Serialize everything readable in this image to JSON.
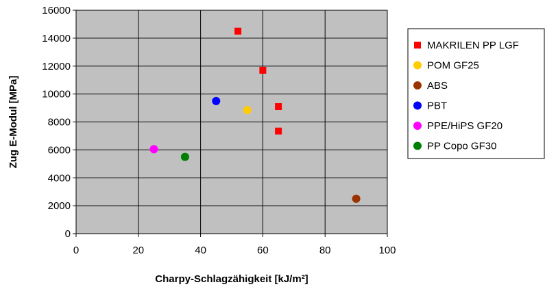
{
  "chart_data": {
    "type": "scatter",
    "title": "",
    "xlabel": "Charpy-Schlagzähigkeit [kJ/m²]",
    "ylabel": "Zug E-Modul [MPa]",
    "xlim": [
      0,
      100
    ],
    "ylim": [
      0,
      16000
    ],
    "x_ticks": [
      0,
      20,
      40,
      60,
      80,
      100
    ],
    "y_ticks": [
      0,
      2000,
      4000,
      6000,
      8000,
      10000,
      12000,
      14000,
      16000
    ],
    "grid": "vertical and horizontal major gridlines",
    "plot_background": "#c0c0c0",
    "legend_position": "right",
    "series": [
      {
        "name": "MAKRILEN PP LGF",
        "marker": "square",
        "color": "#ff0000",
        "points": [
          [
            52,
            14500
          ],
          [
            60,
            11700
          ],
          [
            65,
            9100
          ],
          [
            65,
            7350
          ]
        ]
      },
      {
        "name": "POM GF25",
        "marker": "circle",
        "color": "#ffcc00",
        "points": [
          [
            55,
            8850
          ]
        ]
      },
      {
        "name": "ABS",
        "marker": "circle",
        "color": "#993300",
        "points": [
          [
            90,
            2500
          ]
        ]
      },
      {
        "name": "PBT",
        "marker": "circle",
        "color": "#0000ff",
        "points": [
          [
            45,
            9500
          ]
        ]
      },
      {
        "name": "PPE/HiPS GF20",
        "marker": "circle",
        "color": "#ff00ff",
        "points": [
          [
            25,
            6050
          ]
        ]
      },
      {
        "name": "PP Copo GF30",
        "marker": "circle",
        "color": "#008000",
        "points": [
          [
            35,
            5500
          ]
        ]
      }
    ]
  }
}
